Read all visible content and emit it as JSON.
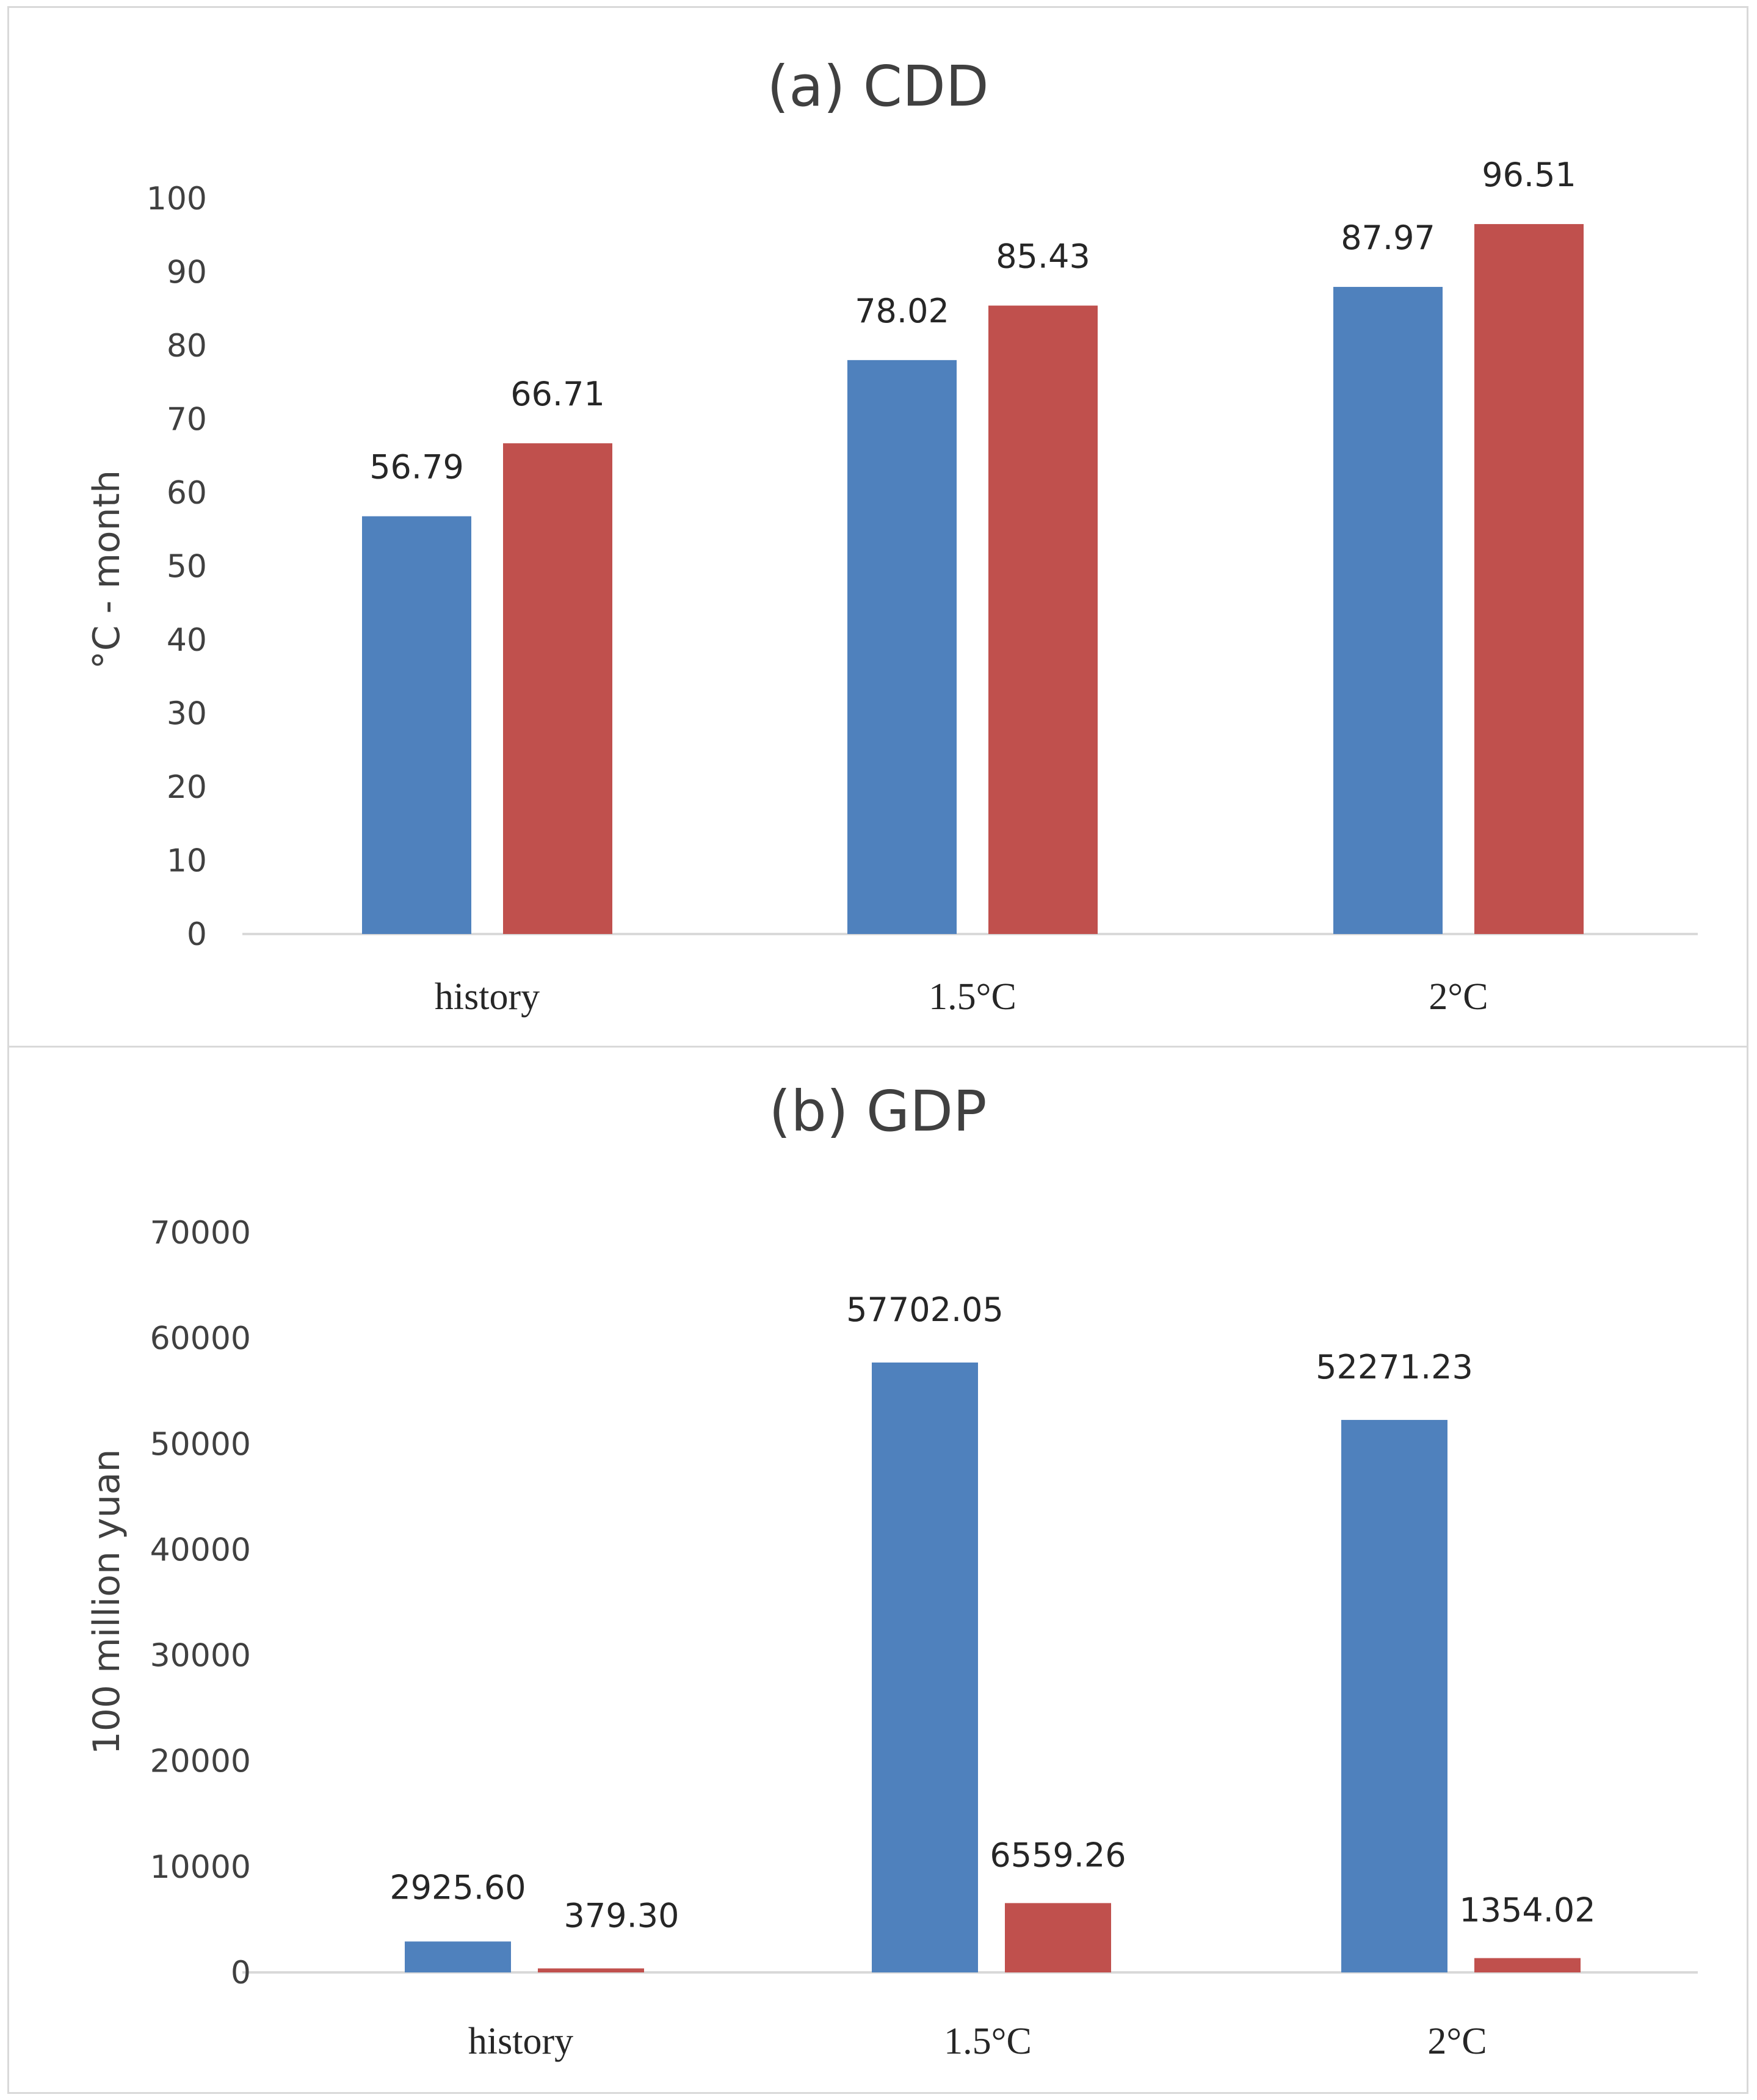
{
  "chart_data": [
    {
      "type": "bar",
      "title": "(a) CDD",
      "ylabel": "°C - month",
      "xlabel": "",
      "categories": [
        "history",
        "1.5°C",
        "2°C"
      ],
      "series": [
        {
          "name": "series-1",
          "color": "#4f81bd",
          "values": [
            56.79,
            78.02,
            87.97
          ],
          "labels": [
            "56.79",
            "78.02",
            "87.97"
          ]
        },
        {
          "name": "series-2",
          "color": "#c0504d",
          "values": [
            66.71,
            85.43,
            96.51
          ],
          "labels": [
            "66.71",
            "85.43",
            "96.51"
          ]
        }
      ],
      "ylim": [
        0,
        100
      ],
      "yticks": [
        0,
        10,
        20,
        30,
        40,
        50,
        60,
        70,
        80,
        90,
        100
      ],
      "ytick_labels": [
        "0",
        "10",
        "20",
        "30",
        "40",
        "50",
        "60",
        "70",
        "80",
        "90",
        "100"
      ],
      "grid": false
    },
    {
      "type": "bar",
      "title": "(b) GDP",
      "ylabel": "100 million yuan",
      "xlabel": "",
      "categories": [
        "history",
        "1.5°C",
        "2°C"
      ],
      "series": [
        {
          "name": "series-1",
          "color": "#4f81bd",
          "values": [
            2925.6,
            57702.05,
            52271.23
          ],
          "labels": [
            "2925.60",
            "57702.05",
            "52271.23"
          ]
        },
        {
          "name": "series-2",
          "color": "#c0504d",
          "values": [
            379.3,
            6559.26,
            1354.02
          ],
          "labels": [
            "379.30",
            "6559.26",
            "1354.02"
          ]
        }
      ],
      "ylim": [
        0,
        70000
      ],
      "yticks": [
        0,
        10000,
        20000,
        30000,
        40000,
        50000,
        60000,
        70000
      ],
      "ytick_labels": [
        "0",
        "10000",
        "20000",
        "30000",
        "40000",
        "50000",
        "60000",
        "70000"
      ],
      "grid": false
    }
  ]
}
